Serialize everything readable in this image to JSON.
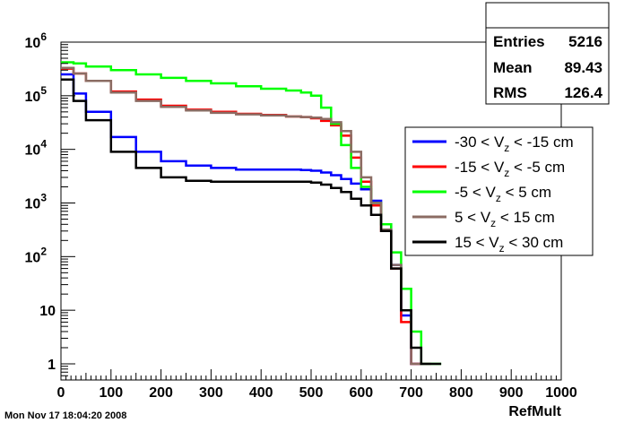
{
  "chart_data": {
    "type": "line",
    "title": "",
    "xlabel": "RefMult",
    "ylabel": "",
    "xlim": [
      0,
      1000
    ],
    "ylim": [
      0.5,
      1000000
    ],
    "y_scale": "log",
    "grid": false,
    "x_ticks": [
      {
        "value": 0,
        "label": "0"
      },
      {
        "value": 100,
        "label": "100"
      },
      {
        "value": 200,
        "label": "200"
      },
      {
        "value": 300,
        "label": "300"
      },
      {
        "value": 400,
        "label": "400"
      },
      {
        "value": 500,
        "label": "500"
      },
      {
        "value": 600,
        "label": "600"
      },
      {
        "value": 700,
        "label": "700"
      },
      {
        "value": 800,
        "label": "800"
      },
      {
        "value": 900,
        "label": "900"
      },
      {
        "value": 1000,
        "label": "1000"
      }
    ],
    "y_ticks": [
      {
        "value": 1,
        "base": "1",
        "exp": ""
      },
      {
        "value": 10,
        "base": "10",
        "exp": ""
      },
      {
        "value": 100,
        "base": "10",
        "exp": "2"
      },
      {
        "value": 1000,
        "base": "10",
        "exp": "3"
      },
      {
        "value": 10000,
        "base": "10",
        "exp": "4"
      },
      {
        "value": 100000,
        "base": "10",
        "exp": "5"
      },
      {
        "value": 1000000,
        "base": "10",
        "exp": "6"
      }
    ],
    "legend_position": "right",
    "x": [
      0,
      25,
      50,
      100,
      150,
      200,
      250,
      300,
      350,
      400,
      450,
      480,
      500,
      520,
      540,
      560,
      580,
      600,
      620,
      640,
      660,
      680,
      700,
      720,
      740,
      760
    ],
    "series": [
      {
        "name": "-30 < V_z < -15 cm",
        "label_parts": [
          "-30 < V",
          "z",
          " < -15 cm"
        ],
        "color": "#0000ff",
        "values": [
          250000,
          110000,
          50000,
          17000,
          9000,
          6000,
          5000,
          4500,
          4200,
          4200,
          4200,
          4100,
          4000,
          3700,
          3300,
          2800,
          2300,
          1800,
          1100,
          400,
          70,
          8,
          1,
          null,
          null,
          null
        ]
      },
      {
        "name": "-15 < V_z < -5 cm",
        "label_parts": [
          "-15 < V",
          "z",
          " < -5 cm"
        ],
        "color": "#ff0000",
        "values": [
          320000,
          260000,
          190000,
          120000,
          85000,
          65000,
          55000,
          50000,
          46000,
          44000,
          41000,
          40000,
          38000,
          34000,
          28000,
          18000,
          7000,
          2500,
          900,
          300,
          60,
          6,
          1,
          null,
          null,
          null
        ]
      },
      {
        "name": "-5 < V_z < 5 cm",
        "label_parts": [
          "-5 < V",
          "z",
          " < 5 cm"
        ],
        "color": "#00ff00",
        "values": [
          420000,
          400000,
          350000,
          300000,
          250000,
          215000,
          190000,
          170000,
          150000,
          135000,
          125000,
          115000,
          100000,
          60000,
          30000,
          12000,
          4500,
          2000,
          1000,
          400,
          120,
          25,
          4,
          1,
          1,
          1
        ]
      },
      {
        "name": "5 < V_z < 15 cm",
        "label_parts": [
          "5 < V",
          "z",
          " < 15 cm"
        ],
        "color": "#8b6c63",
        "values": [
          330000,
          260000,
          190000,
          115000,
          80000,
          62000,
          53000,
          48000,
          45000,
          43000,
          41000,
          40000,
          39000,
          37000,
          32000,
          22000,
          9000,
          3000,
          1000,
          320,
          70,
          10,
          1,
          1,
          null,
          null
        ]
      },
      {
        "name": "15 < V_z < 30 cm",
        "label_parts": [
          "15 < V",
          "z",
          " < 30 cm"
        ],
        "color": "#000000",
        "values": [
          200000,
          80000,
          35000,
          9000,
          4500,
          3000,
          2600,
          2500,
          2500,
          2500,
          2500,
          2500,
          2400,
          2200,
          1900,
          1600,
          1200,
          900,
          600,
          300,
          60,
          10,
          2,
          1,
          1,
          null
        ]
      }
    ]
  },
  "stats": [
    {
      "label": "Entries",
      "value": "5216"
    },
    {
      "label": "Mean",
      "value": "89.43"
    },
    {
      "label": "RMS",
      "value": "126.4"
    }
  ],
  "footer": "Mon Nov 17 18:04:20 2008"
}
